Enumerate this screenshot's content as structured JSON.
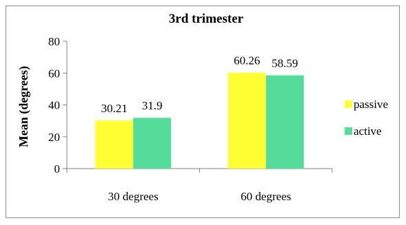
{
  "chart_data": {
    "type": "bar",
    "title": "3rd trimester",
    "xlabel": "",
    "ylabel": "Mean (degrees)",
    "categories": [
      "30 degrees",
      "60 degrees"
    ],
    "series": [
      {
        "name": "passive",
        "color": "#ffff33",
        "values": [
          30.21,
          60.26
        ],
        "labels": [
          "30.21",
          "60.26"
        ]
      },
      {
        "name": "active",
        "color": "#55dc9b",
        "values": [
          31.9,
          58.59
        ],
        "labels": [
          "31.9",
          "58.59"
        ]
      }
    ],
    "ylim": [
      0,
      80
    ],
    "yticks": [
      0,
      20,
      40,
      60,
      80
    ],
    "grid": false,
    "legend_position": "right"
  }
}
